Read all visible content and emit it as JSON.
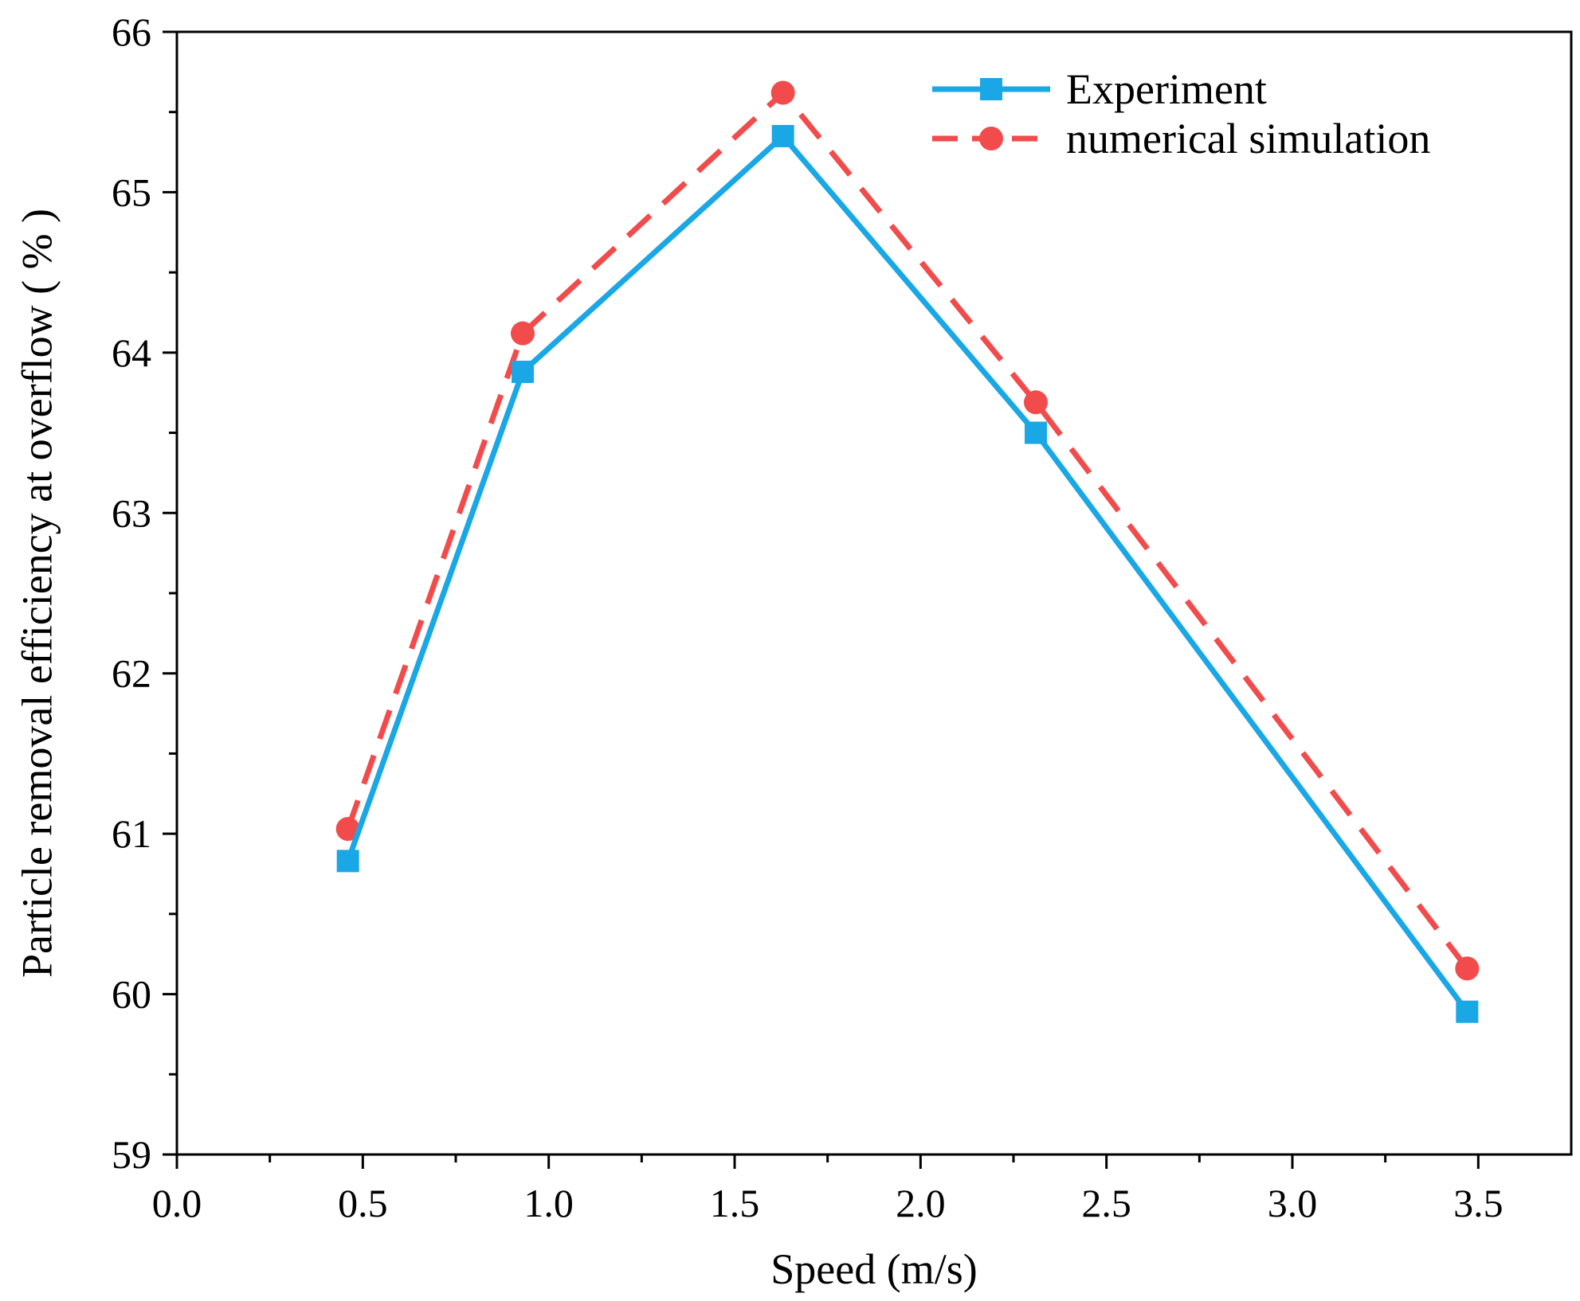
{
  "chart_data": {
    "type": "line",
    "title": "",
    "xlabel": "Speed (m/s)",
    "ylabel": "Particle removal efficiency at overflow ( % )",
    "xlim": [
      0.0,
      3.75
    ],
    "ylim": [
      59,
      66
    ],
    "xticks": [
      0.0,
      0.5,
      1.0,
      1.5,
      2.0,
      2.5,
      3.0,
      3.5
    ],
    "xtick_labels": [
      "0.0",
      "0.5",
      "1.0",
      "1.5",
      "2.0",
      "2.5",
      "3.0",
      "3.5"
    ],
    "yticks": [
      59,
      60,
      61,
      62,
      63,
      64,
      65,
      66
    ],
    "ytick_labels": [
      "59",
      "60",
      "61",
      "62",
      "63",
      "64",
      "65",
      "66"
    ],
    "grid": false,
    "legend_position": "top-right",
    "series": [
      {
        "name": "Experiment",
        "color": "#1aa7e6",
        "line_style": "solid",
        "marker": "square",
        "x": [
          0.46,
          0.93,
          1.63,
          2.31,
          3.47
        ],
        "y": [
          60.83,
          63.88,
          65.35,
          63.5,
          59.89
        ]
      },
      {
        "name": "numerical simulation",
        "color": "#f24b4b",
        "line_style": "dashed",
        "marker": "circle",
        "x": [
          0.46,
          0.93,
          1.63,
          2.31,
          3.47
        ],
        "y": [
          61.03,
          64.12,
          65.62,
          63.69,
          60.16
        ]
      }
    ]
  }
}
